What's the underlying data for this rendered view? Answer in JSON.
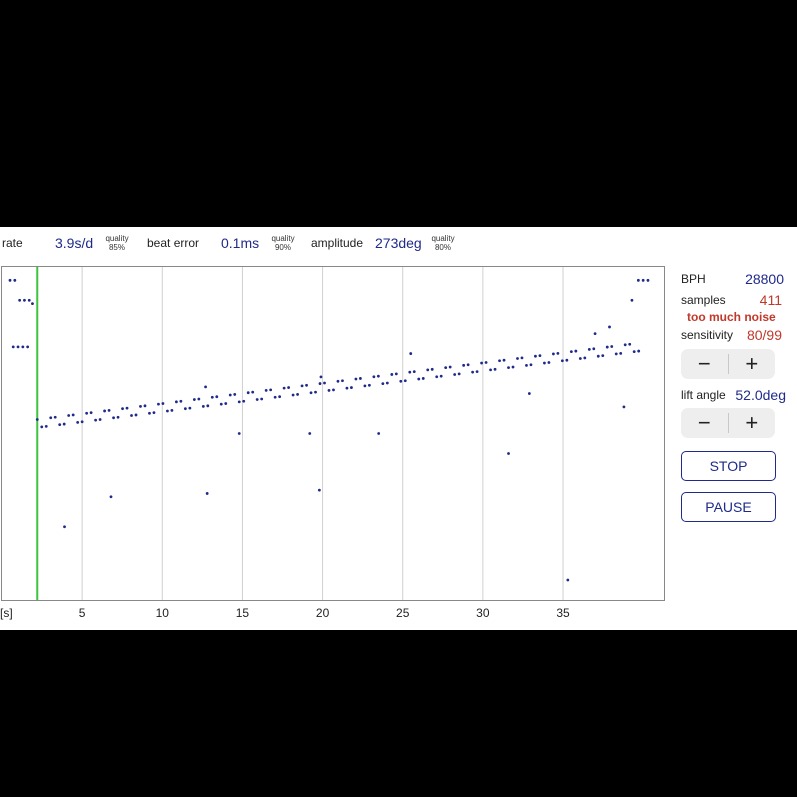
{
  "header": {
    "rate_label": "rate",
    "rate_value": "3.9s/d",
    "rate_quality_label": "quality",
    "rate_quality_value": "85%",
    "beat_error_label": "beat error",
    "beat_error_value": "0.1ms",
    "beat_error_quality_label": "quality",
    "beat_error_quality_value": "90%",
    "amplitude_label": "amplitude",
    "amplitude_value": "273deg",
    "amplitude_quality_label": "quality",
    "amplitude_quality_value": "80%"
  },
  "chart_data": {
    "type": "scatter",
    "x_unit_label": "[s]",
    "x_ticks": [
      "5",
      "10",
      "15",
      "20",
      "25",
      "30",
      "35"
    ],
    "x_tick_values": [
      5,
      10,
      15,
      20,
      25,
      30,
      35
    ],
    "xlim": [
      0,
      41.3
    ],
    "trend_series": {
      "x_start": 2.2,
      "x_end": 39.8,
      "x_step": 0.28,
      "y_start": 0.47,
      "y_end": 0.24,
      "band_offset": 0.012
    },
    "outliers": [
      [
        3.9,
        0.78
      ],
      [
        6.8,
        0.69
      ],
      [
        12.8,
        0.68
      ],
      [
        12.7,
        0.36
      ],
      [
        14.8,
        0.5
      ],
      [
        19.2,
        0.5
      ],
      [
        19.8,
        0.67
      ],
      [
        19.9,
        0.33
      ],
      [
        23.5,
        0.5
      ],
      [
        25.5,
        0.26
      ],
      [
        31.6,
        0.56
      ],
      [
        32.9,
        0.38
      ],
      [
        35.3,
        0.94
      ],
      [
        37.0,
        0.2
      ],
      [
        37.9,
        0.18
      ],
      [
        38.8,
        0.42
      ],
      [
        39.3,
        0.1
      ]
    ],
    "left_cluster": [
      [
        0.5,
        0.04
      ],
      [
        0.8,
        0.04
      ],
      [
        1.1,
        0.1
      ],
      [
        1.4,
        0.1
      ],
      [
        1.7,
        0.1
      ],
      [
        1.9,
        0.11
      ],
      [
        0.7,
        0.24
      ],
      [
        1.0,
        0.24
      ],
      [
        1.3,
        0.24
      ],
      [
        1.6,
        0.24
      ]
    ],
    "right_cluster": [
      [
        39.7,
        0.04
      ],
      [
        40.0,
        0.04
      ],
      [
        40.3,
        0.04
      ]
    ],
    "marker_x": 2.2,
    "marker_color": "#3cc43c",
    "dot_color": "#1f2a8a",
    "gridlines": "vertical"
  },
  "right_panel": {
    "bph_label": "BPH",
    "bph_value": "28800",
    "samples_label": "samples",
    "samples_value": "411",
    "warning": "too much noise",
    "sensitivity_label": "sensitivity",
    "sensitivity_value": "80/99",
    "sens_minus": "−",
    "sens_plus": "+",
    "lift_angle_label": "lift angle",
    "lift_angle_value": "52.0deg",
    "lift_minus": "−",
    "lift_plus": "+",
    "stop_label": "STOP",
    "pause_label": "PAUSE"
  },
  "colors": {
    "value_blue": "#1f2a8a",
    "warning_red": "#c0392b",
    "marker_green": "#3cc43c"
  }
}
